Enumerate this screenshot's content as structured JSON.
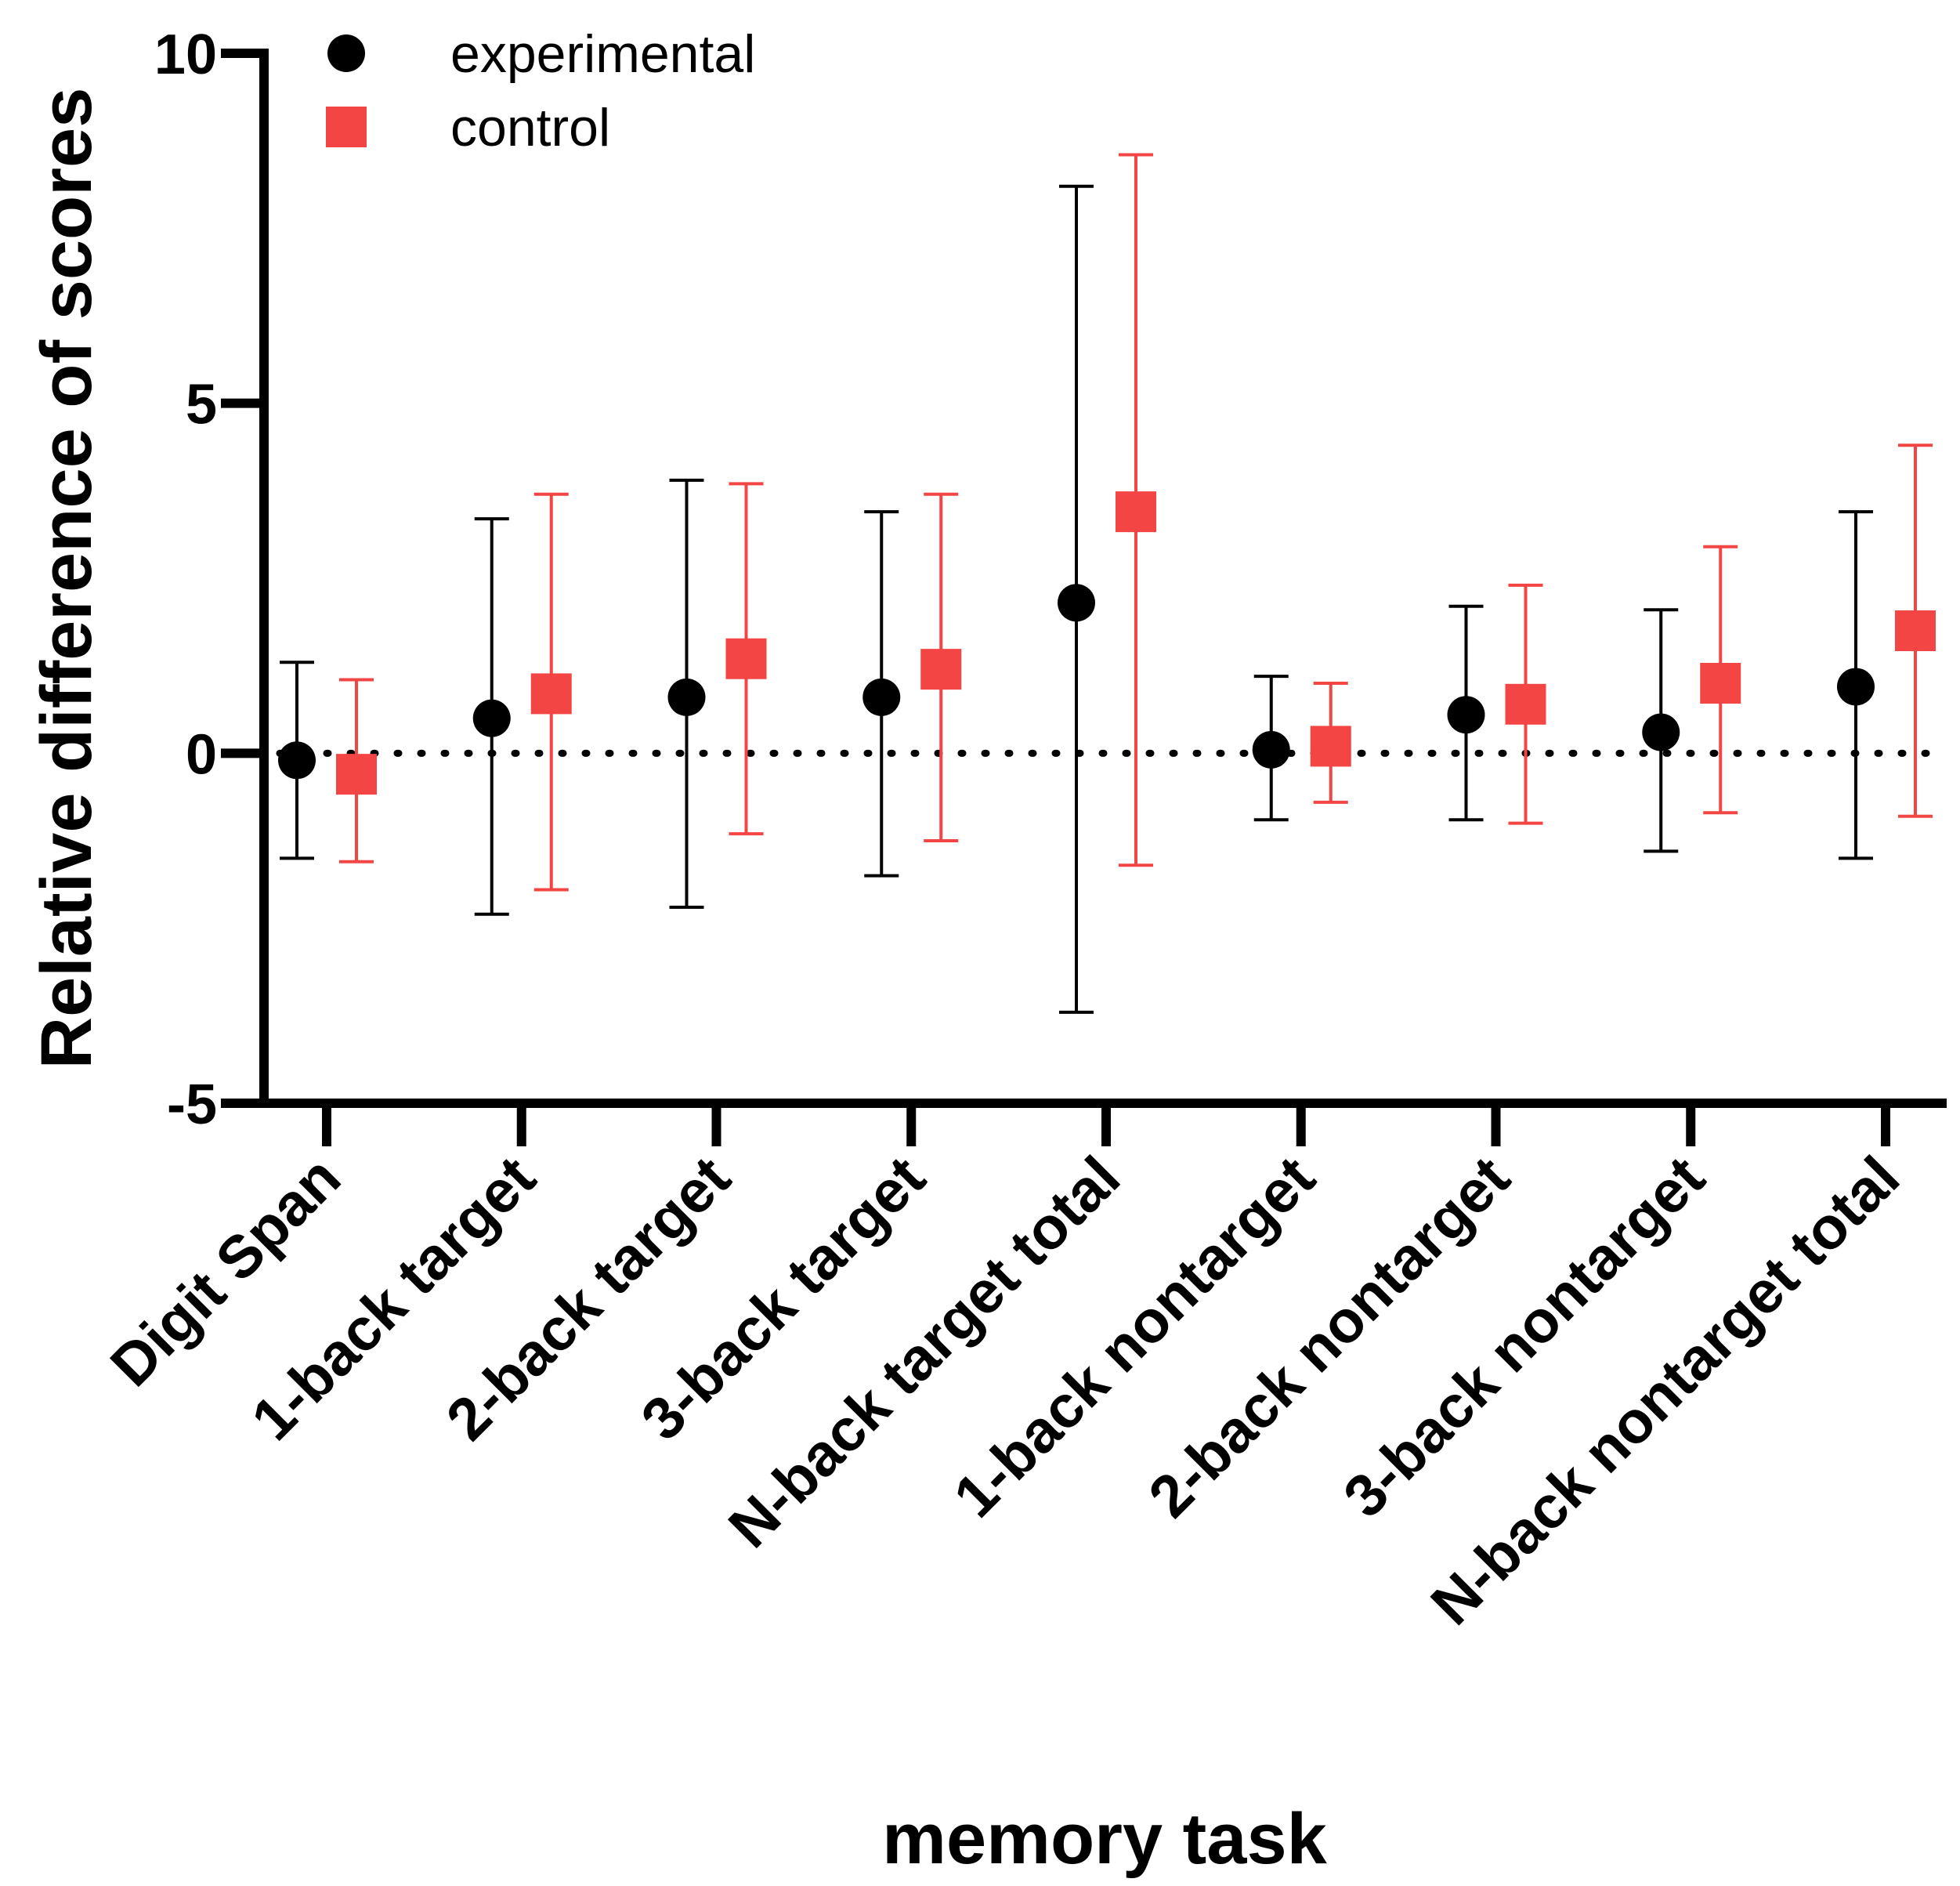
{
  "chart_data": {
    "type": "scatter",
    "xlabel": "memory task",
    "ylabel": "Relative difference of scores",
    "ylim": [
      -5,
      10
    ],
    "yticks": [
      {
        "value": -5,
        "label": "-5"
      },
      {
        "value": 0,
        "label": "0"
      },
      {
        "value": 5,
        "label": "5"
      },
      {
        "value": 10,
        "label": "10"
      }
    ],
    "categories": [
      "Digit Span",
      "1-back target",
      "2-back target",
      "3-back target",
      "N-back target total",
      "1-back nontarget",
      "2-back nontarget",
      "3-back nontarget",
      "N-back nontarget total"
    ],
    "reference_line": 0,
    "legend_position": "top-left",
    "series": [
      {
        "name": "experimental",
        "marker": "circle",
        "color": "#000000",
        "values": [
          -0.1,
          0.5,
          0.8,
          0.8,
          2.15,
          0.05,
          0.55,
          0.3,
          0.95
        ],
        "upper": [
          1.3,
          3.35,
          3.9,
          3.45,
          8.1,
          1.1,
          2.1,
          2.05,
          3.45
        ],
        "lower": [
          -1.5,
          -2.3,
          -2.2,
          -1.75,
          -3.7,
          -0.95,
          -0.95,
          -1.4,
          -1.5
        ]
      },
      {
        "name": "control",
        "marker": "square",
        "color": "#f44545",
        "values": [
          -0.3,
          0.85,
          1.35,
          1.2,
          3.45,
          0.1,
          0.7,
          1.0,
          1.75
        ],
        "upper": [
          1.05,
          3.7,
          3.85,
          3.7,
          8.55,
          1.0,
          2.4,
          2.95,
          4.4
        ],
        "lower": [
          -1.55,
          -1.95,
          -1.15,
          -1.25,
          -1.6,
          -0.7,
          -1.0,
          -0.85,
          -0.9
        ]
      }
    ]
  }
}
